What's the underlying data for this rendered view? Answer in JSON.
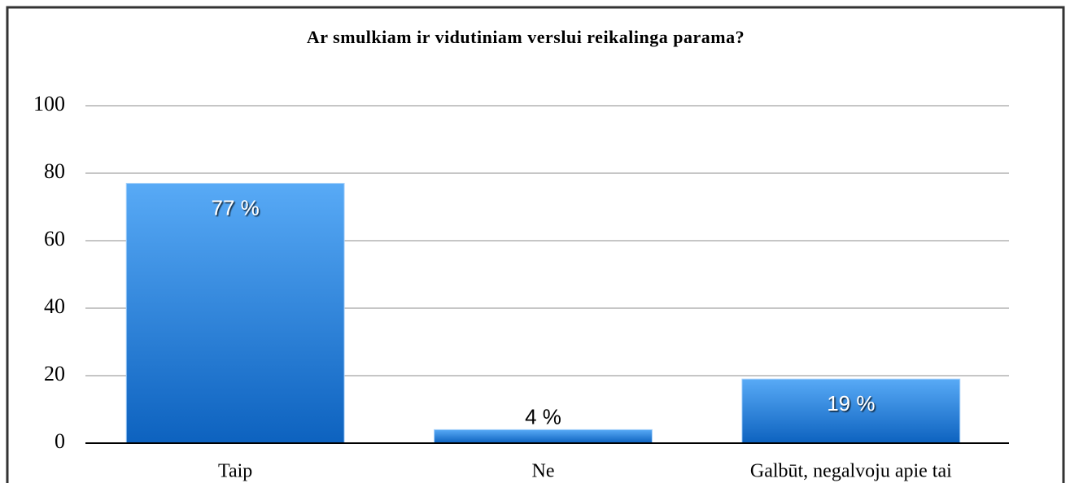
{
  "chart_data": {
    "type": "bar",
    "title": "Ar smulkiam ir vidutiniam verslui reikalinga parama?",
    "categories": [
      "Taip",
      "Ne",
      "Galbūt, negalvoju apie tai"
    ],
    "values": [
      77,
      4,
      19
    ],
    "value_labels": [
      "77 %",
      "4 %",
      "19 %"
    ],
    "color": "#3a8ee6",
    "ylim": [
      0,
      100
    ],
    "yticks": [
      0,
      20,
      40,
      60,
      80,
      100
    ],
    "grid": true
  }
}
